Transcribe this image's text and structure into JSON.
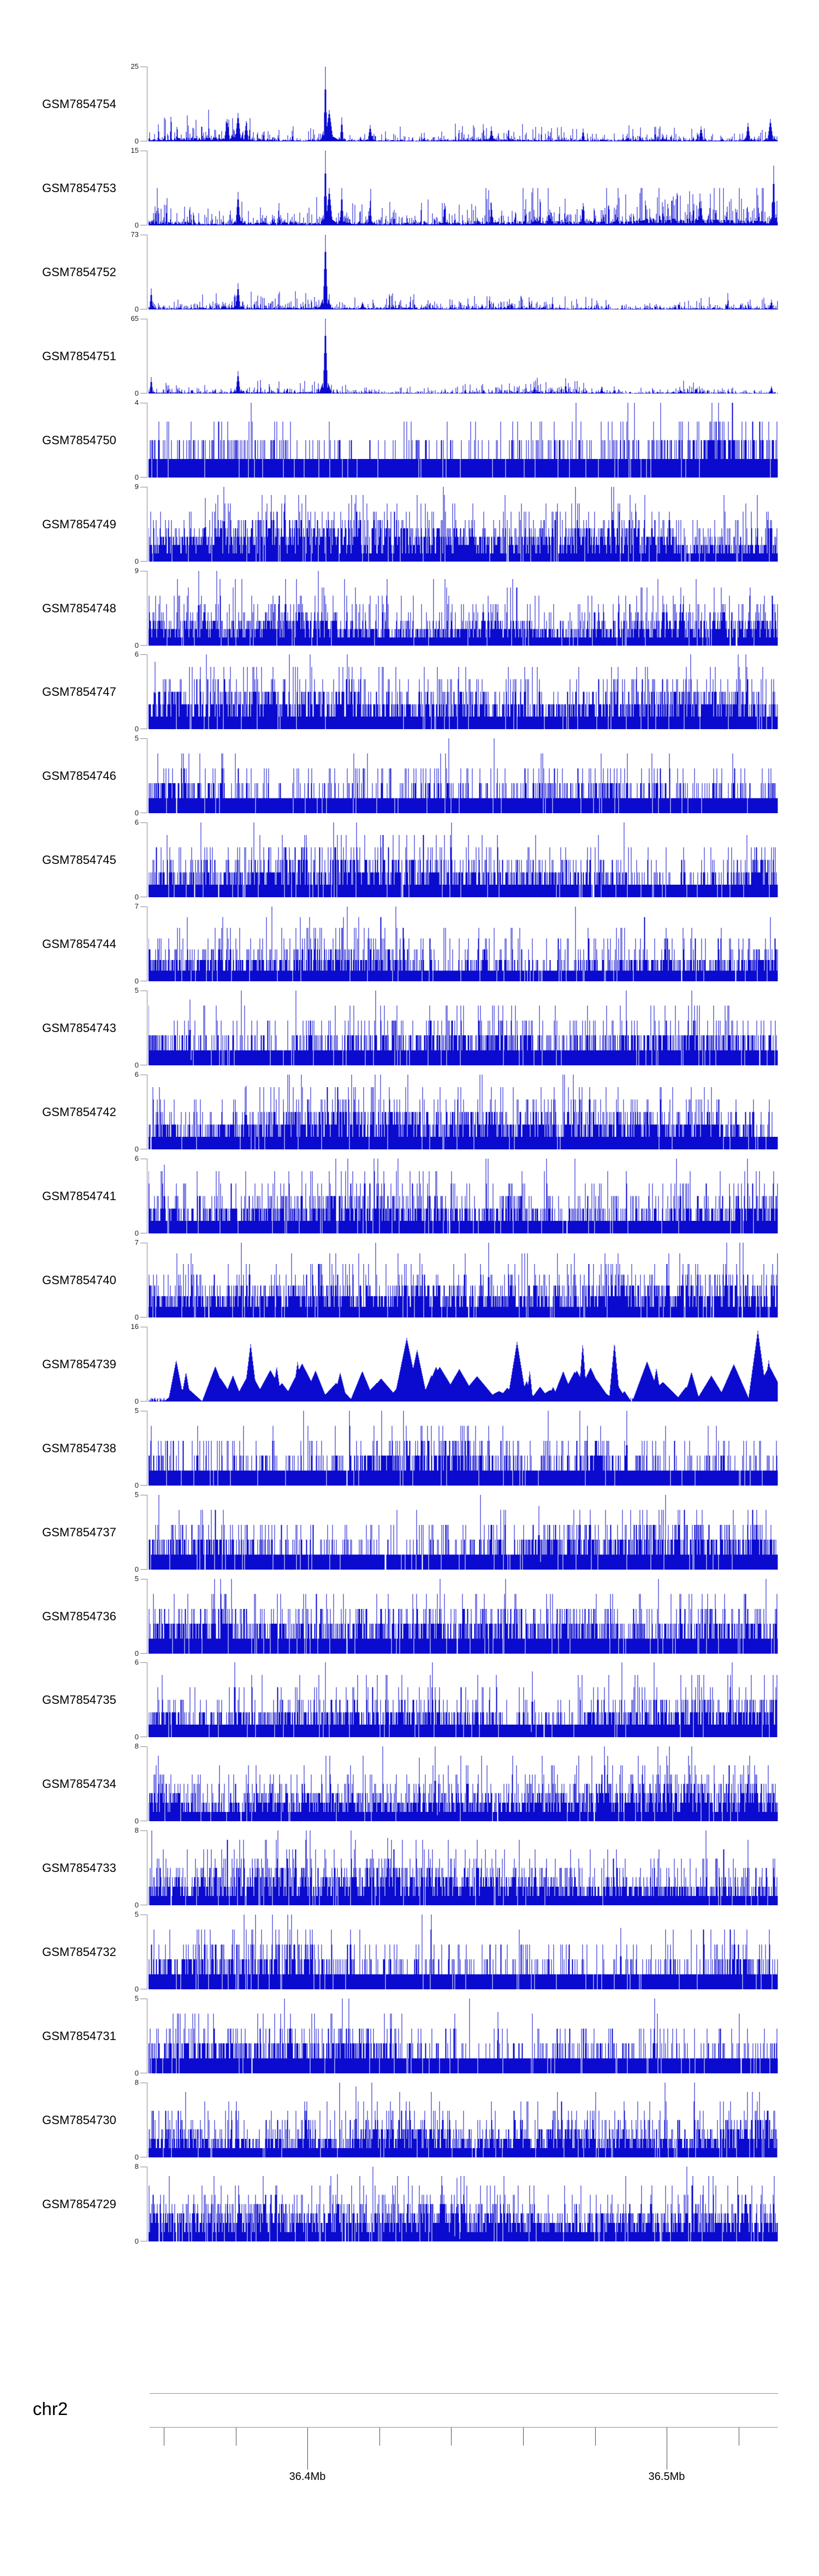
{
  "figure": {
    "background": "#ffffff",
    "signal_color": "#0b0bcf",
    "bracket_color": "#8a8a8a",
    "axis_line_color": "#8f8f8f",
    "tick_color": "#4d4d4d",
    "text_color": "#000000"
  },
  "chart_data": {
    "type": "area",
    "description": "Stacked genome-browser coverage tracks (one histogram track per GEO sample) over a region of chromosome 2. Per-base signal is dense read-coverage data; values below are the visible y-axis limits and prominent peak locations read from the image. Fine-grained bar heights are procedurally approximated.",
    "chromosome": "chr2",
    "x_axis": {
      "visible_range_mb": [
        36.356,
        36.531
      ],
      "tick_positions_mb": [
        36.36,
        36.38,
        36.4,
        36.42,
        36.44,
        36.46,
        36.48,
        36.5,
        36.52
      ],
      "labeled_ticks": [
        {
          "position_mb": 36.4,
          "label": "36.4Mb"
        },
        {
          "position_mb": 36.5,
          "label": "36.5Mb"
        }
      ]
    },
    "tracks": [
      {
        "label": "GSM7854754",
        "ymin": 0,
        "ymax": 25,
        "profile": "sparse",
        "seed": 41,
        "base": 0.1,
        "peaks": [
          [
            0.281,
            1.0,
            3
          ],
          [
            0.287,
            0.42,
            7
          ],
          [
            0.125,
            0.3,
            5
          ],
          [
            0.142,
            0.38,
            5
          ],
          [
            0.155,
            0.27,
            4
          ],
          [
            0.307,
            0.32,
            3
          ],
          [
            0.352,
            0.22,
            4
          ],
          [
            0.545,
            0.2,
            3
          ],
          [
            0.69,
            0.17,
            3
          ],
          [
            0.878,
            0.2,
            4
          ],
          [
            0.952,
            0.25,
            4
          ],
          [
            0.988,
            0.3,
            5
          ]
        ]
      },
      {
        "label": "GSM7854753",
        "ymin": 0,
        "ymax": 15,
        "profile": "sparse",
        "seed": 42,
        "base": 0.18,
        "peaks": [
          [
            0.281,
            1.0,
            3
          ],
          [
            0.287,
            0.5,
            6
          ],
          [
            0.142,
            0.45,
            4
          ],
          [
            0.307,
            0.5,
            3
          ],
          [
            0.352,
            0.33,
            3
          ],
          [
            0.47,
            0.3,
            3
          ],
          [
            0.545,
            0.3,
            3
          ],
          [
            0.69,
            0.3,
            3
          ],
          [
            0.878,
            0.33,
            3
          ],
          [
            0.993,
            0.8,
            3
          ]
        ]
      },
      {
        "label": "GSM7854752",
        "ymin": 0,
        "ymax": 73,
        "profile": "sparse",
        "seed": 43,
        "base": 0.05,
        "peaks": [
          [
            0.281,
            1.0,
            4
          ],
          [
            0.142,
            0.35,
            4
          ],
          [
            0.004,
            0.28,
            3
          ],
          [
            0.34,
            0.1,
            4
          ],
          [
            0.53,
            0.07,
            3
          ],
          [
            0.99,
            0.13,
            3
          ]
        ]
      },
      {
        "label": "GSM7854751",
        "ymin": 0,
        "ymax": 65,
        "profile": "sparse",
        "seed": 44,
        "base": 0.05,
        "peaks": [
          [
            0.281,
            1.0,
            4
          ],
          [
            0.142,
            0.3,
            4
          ],
          [
            0.004,
            0.22,
            3
          ],
          [
            0.72,
            0.09,
            3
          ],
          [
            0.99,
            0.1,
            3
          ]
        ]
      },
      {
        "label": "GSM7854750",
        "ymin": 0,
        "ymax": 4,
        "profile": "dense",
        "seed": 45,
        "peaks": []
      },
      {
        "label": "GSM7854749",
        "ymin": 0,
        "ymax": 9,
        "profile": "dense",
        "seed": 46,
        "peaks": [
          [
            0.12,
            1.0,
            2
          ],
          [
            0.09,
            0.85,
            2
          ]
        ]
      },
      {
        "label": "GSM7854748",
        "ymin": 0,
        "ymax": 9,
        "profile": "dense",
        "seed": 47,
        "peaks": [
          [
            0.08,
            1.0,
            2
          ]
        ]
      },
      {
        "label": "GSM7854747",
        "ymin": 0,
        "ymax": 6,
        "profile": "dense",
        "seed": 48,
        "peaks": [
          [
            0.01,
            0.9,
            2
          ]
        ]
      },
      {
        "label": "GSM7854746",
        "ymin": 0,
        "ymax": 5,
        "profile": "dense",
        "seed": 49,
        "peaks": []
      },
      {
        "label": "GSM7854745",
        "ymin": 0,
        "ymax": 6,
        "profile": "dense",
        "seed": 50,
        "peaks": []
      },
      {
        "label": "GSM7854744",
        "ymin": 0,
        "ymax": 7,
        "profile": "dense",
        "seed": 51,
        "peaks": []
      },
      {
        "label": "GSM7854743",
        "ymin": 0,
        "ymax": 5,
        "profile": "dense",
        "seed": 52,
        "peaks": [
          [
            0.066,
            0.88,
            2
          ]
        ]
      },
      {
        "label": "GSM7854742",
        "ymin": 0,
        "ymax": 6,
        "profile": "dense",
        "seed": 53,
        "peaks": [
          [
            0.155,
            0.85,
            2
          ]
        ]
      },
      {
        "label": "GSM7854741",
        "ymin": 0,
        "ymax": 6,
        "profile": "dense",
        "seed": 54,
        "peaks": [
          [
            0.025,
            0.92,
            2
          ]
        ]
      },
      {
        "label": "GSM7854740",
        "ymin": 0,
        "ymax": 7,
        "profile": "dense",
        "seed": 55,
        "peaks": [
          [
            0.54,
            1.0,
            2
          ]
        ]
      },
      {
        "label": "GSM7854739",
        "ymin": 0,
        "ymax": 16,
        "profile": "triangles",
        "seed": 56,
        "peaks": [
          [
            0.41,
            0.85,
            8
          ],
          [
            0.585,
            0.8,
            6
          ],
          [
            0.93,
            0.5,
            10
          ],
          [
            0.968,
            0.95,
            6
          ],
          [
            0.985,
            0.55,
            4
          ]
        ]
      },
      {
        "label": "GSM7854738",
        "ymin": 0,
        "ymax": 5,
        "profile": "dense",
        "seed": 57,
        "peaks": [
          [
            0.76,
            1.0,
            2
          ]
        ]
      },
      {
        "label": "GSM7854737",
        "ymin": 0,
        "ymax": 5,
        "profile": "dense",
        "seed": 58,
        "peaks": [
          [
            0.62,
            0.85,
            2
          ]
        ]
      },
      {
        "label": "GSM7854736",
        "ymin": 0,
        "ymax": 5,
        "profile": "dense",
        "seed": 59,
        "peaks": []
      },
      {
        "label": "GSM7854735",
        "ymin": 0,
        "ymax": 6,
        "profile": "dense",
        "seed": 60,
        "peaks": [
          [
            0.61,
            0.88,
            2
          ]
        ]
      },
      {
        "label": "GSM7854734",
        "ymin": 0,
        "ymax": 8,
        "profile": "dense",
        "seed": 61,
        "peaks": [
          [
            0.455,
            1.0,
            2
          ],
          [
            0.43,
            0.85,
            2
          ]
        ]
      },
      {
        "label": "GSM7854733",
        "ymin": 0,
        "ymax": 8,
        "profile": "dense",
        "seed": 62,
        "peaks": [
          [
            0.38,
            0.9,
            2
          ]
        ]
      },
      {
        "label": "GSM7854732",
        "ymin": 0,
        "ymax": 5,
        "profile": "dense",
        "seed": 63,
        "peaks": [
          [
            0.75,
            0.82,
            2
          ]
        ]
      },
      {
        "label": "GSM7854731",
        "ymin": 0,
        "ymax": 5,
        "profile": "dense",
        "seed": 64,
        "peaks": [
          [
            0.555,
            0.82,
            2
          ]
        ]
      },
      {
        "label": "GSM7854730",
        "ymin": 0,
        "ymax": 8,
        "profile": "dense",
        "seed": 65,
        "peaks": [
          [
            0.33,
            0.95,
            2
          ]
        ]
      },
      {
        "label": "GSM7854729",
        "ymin": 0,
        "ymax": 8,
        "profile": "dense",
        "seed": 66,
        "peaks": [
          [
            0.3,
            0.9,
            2
          ],
          [
            0.49,
            0.85,
            2
          ]
        ]
      }
    ]
  }
}
